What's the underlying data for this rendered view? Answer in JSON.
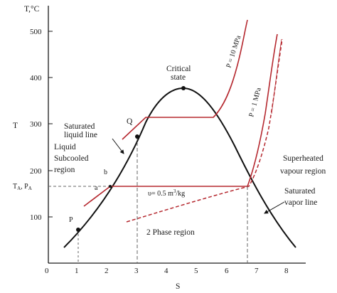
{
  "axes": {
    "y_title": "T,°C",
    "y_side_label": "T",
    "x_label": "S",
    "y_ticks": [
      "500",
      "400",
      "300",
      "200",
      "100"
    ],
    "x_ticks": [
      "0",
      "1",
      "2",
      "3",
      "4",
      "5",
      "6",
      "7",
      "8"
    ],
    "y_range": [
      0,
      540
    ],
    "x_range": [
      0,
      8.6
    ]
  },
  "labels": {
    "critical_line1": "Critical",
    "critical_line2": "state",
    "p10": "P = 10 MPa",
    "p1": "P = 1 MPa",
    "q": "Q",
    "sat_liquid_line1": "Saturated",
    "sat_liquid_line2": "liquid line",
    "liquid_line1": "Liquid",
    "liquid_line2": "Subcooled",
    "liquid_line3": "region",
    "b": "b",
    "ta_pa": "T",
    "ta_sub": "A",
    "ta_pa_mid": ", P",
    "pa_sub": "A",
    "a": "a",
    "p": "P",
    "volume_pre": "υ= 0.5 m",
    "volume_sup": "3",
    "volume_post": "/kg",
    "two_phase": "2 Phase region",
    "superheated_line1": "Superheated",
    "superheated_line2": "vapour region",
    "sat_vapor_line1": "Saturated",
    "sat_vapor_line2": "vapor line"
  },
  "colors": {
    "axis": "#1a1a1a",
    "dome": "#111111",
    "isobar": "#b5282f",
    "dashed": "#666666"
  }
}
